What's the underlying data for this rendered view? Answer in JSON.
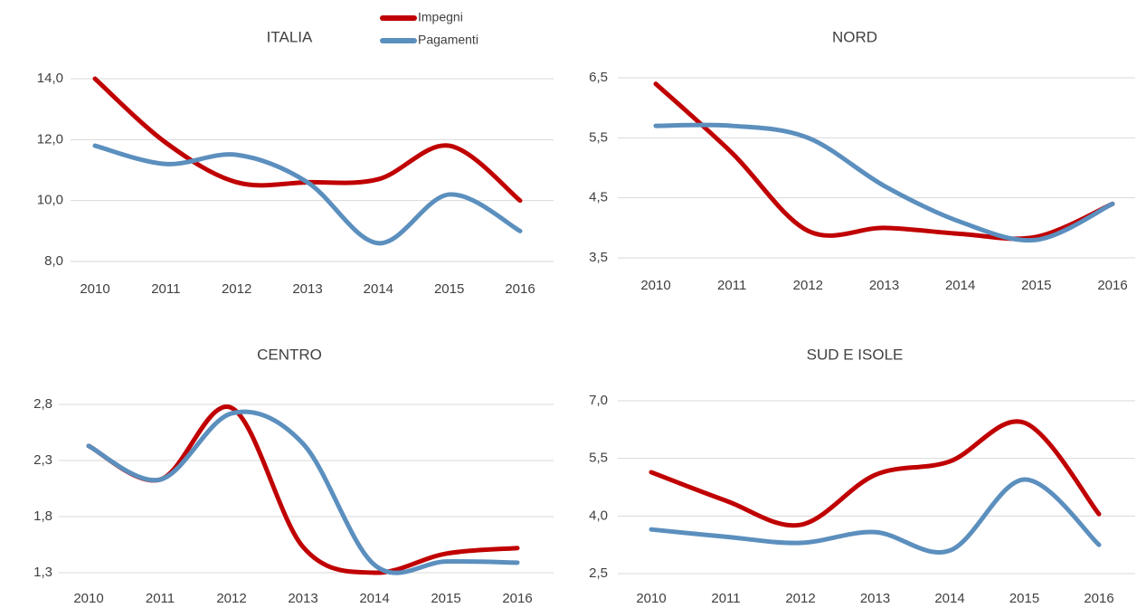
{
  "chart_data": [
    {
      "type": "line",
      "title": "ITALIA",
      "categories": [
        "2010",
        "2011",
        "2012",
        "2013",
        "2014",
        "2015",
        "2016"
      ],
      "series": [
        {
          "name": "Impegni",
          "color": "#c00000",
          "values": [
            14.0,
            11.9,
            10.6,
            10.6,
            10.7,
            11.8,
            10.0
          ]
        },
        {
          "name": "Pagamenti",
          "color": "#5b8fbe",
          "values": [
            11.8,
            11.2,
            11.5,
            10.6,
            8.6,
            10.2,
            9.0
          ]
        }
      ],
      "ylim": [
        8,
        14
      ],
      "yticks": [
        {
          "value": 8,
          "label": "8,0"
        },
        {
          "value": 10,
          "label": "10,0"
        },
        {
          "value": 12,
          "label": "12,0"
        },
        {
          "value": 14,
          "label": "14,0"
        }
      ],
      "grid": true,
      "legend": "top"
    },
    {
      "type": "line",
      "title": "NORD",
      "categories": [
        "2010",
        "2011",
        "2012",
        "2013",
        "2014",
        "2015",
        "2016"
      ],
      "series": [
        {
          "name": "Impegni",
          "color": "#c00000",
          "values": [
            6.4,
            5.25,
            3.95,
            4.0,
            3.9,
            3.85,
            4.4
          ]
        },
        {
          "name": "Pagamenti",
          "color": "#5b8fbe",
          "values": [
            5.7,
            5.7,
            5.5,
            4.7,
            4.1,
            3.8,
            4.4
          ]
        }
      ],
      "ylim": [
        3.5,
        6.5
      ],
      "yticks": [
        {
          "value": 3.5,
          "label": "3,5"
        },
        {
          "value": 4.5,
          "label": "4,5"
        },
        {
          "value": 5.5,
          "label": "5,5"
        },
        {
          "value": 6.5,
          "label": "6,5"
        }
      ],
      "grid": true
    },
    {
      "type": "line",
      "title": "CENTRO",
      "categories": [
        "2010",
        "2011",
        "2012",
        "2013",
        "2014",
        "2015",
        "2016"
      ],
      "series": [
        {
          "name": "Impegni",
          "color": "#c00000",
          "values": [
            2.43,
            2.13,
            2.77,
            1.53,
            1.3,
            1.47,
            1.52
          ]
        },
        {
          "name": "Pagamenti",
          "color": "#5b8fbe",
          "values": [
            2.43,
            2.13,
            2.72,
            2.45,
            1.37,
            1.4,
            1.39
          ]
        }
      ],
      "ylim": [
        1.3,
        2.8
      ],
      "yticks": [
        {
          "value": 1.3,
          "label": "1,3"
        },
        {
          "value": 1.8,
          "label": "1,8"
        },
        {
          "value": 2.3,
          "label": "2,3"
        },
        {
          "value": 2.8,
          "label": "2,8"
        }
      ],
      "grid": true
    },
    {
      "type": "line",
      "title": "SUD E ISOLE",
      "categories": [
        "2010",
        "2011",
        "2012",
        "2013",
        "2014",
        "2015",
        "2016"
      ],
      "series": [
        {
          "name": "Impegni",
          "color": "#c00000",
          "values": [
            5.14,
            4.4,
            3.77,
            5.07,
            5.42,
            6.43,
            4.05
          ]
        },
        {
          "name": "Pagamenti",
          "color": "#5b8fbe",
          "values": [
            3.65,
            3.46,
            3.3,
            3.58,
            3.1,
            4.95,
            3.25
          ]
        }
      ],
      "ylim": [
        2.5,
        7.0
      ],
      "yticks": [
        {
          "value": 2.5,
          "label": "2,5"
        },
        {
          "value": 4,
          "label": "4,0"
        },
        {
          "value": 5.5,
          "label": "5,5"
        },
        {
          "value": 7,
          "label": "7,0"
        }
      ],
      "grid": true
    }
  ]
}
